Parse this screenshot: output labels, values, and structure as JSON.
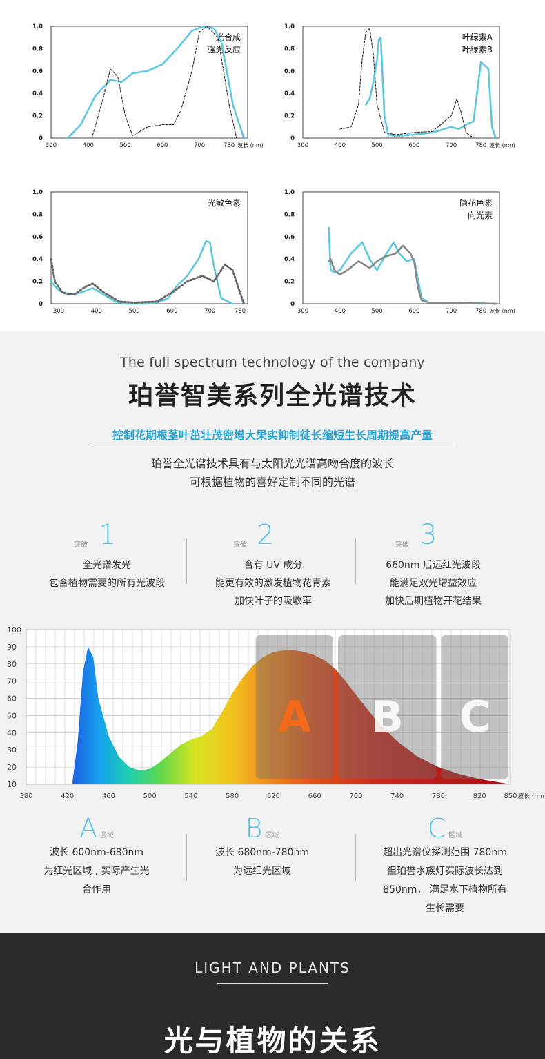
{
  "chart_data": [
    {
      "type": "line",
      "panel": "top-left",
      "legend": [
        "光合成",
        "强光反应"
      ],
      "x_ticks": [
        "300",
        "400",
        "500",
        "600",
        "700",
        "780"
      ],
      "x_unit": "波长 (nm)",
      "y_ticks": [
        "0",
        "0.2",
        "0.4",
        "0.6",
        "0.8",
        "1.0"
      ],
      "xlim": [
        300,
        830
      ],
      "ylim": [
        0,
        1.0
      ],
      "series": [
        {
          "style": "cyan-solid",
          "x": [
            345,
            380,
            420,
            460,
            490,
            520,
            560,
            600,
            640,
            680,
            710,
            740,
            760,
            790,
            820
          ],
          "y": [
            0,
            0.12,
            0.38,
            0.52,
            0.5,
            0.58,
            0.6,
            0.66,
            0.8,
            0.96,
            1.0,
            0.98,
            0.85,
            0.3,
            0
          ]
        },
        {
          "style": "black-dashed",
          "x": [
            410,
            440,
            460,
            480,
            500,
            520,
            560,
            600,
            630,
            650,
            680,
            700,
            720,
            750,
            780,
            800
          ],
          "y": [
            0,
            0.35,
            0.62,
            0.55,
            0.2,
            0.02,
            0.1,
            0.12,
            0.12,
            0.25,
            0.6,
            0.95,
            1.0,
            0.9,
            0.3,
            0
          ]
        }
      ]
    },
    {
      "type": "line",
      "panel": "top-right",
      "legend": [
        "叶绿素A",
        "叶绿素B"
      ],
      "x_ticks": [
        "300",
        "400",
        "500",
        "600",
        "700",
        "780"
      ],
      "x_unit": "波长 (nm)",
      "y_ticks": [
        "0",
        "0.2",
        "0.4",
        "0.6",
        "0.8",
        "1.0"
      ],
      "xlim": [
        300,
        830
      ],
      "ylim": [
        0,
        1.0
      ],
      "series": [
        {
          "style": "cyan-solid",
          "x": [
            470,
            480,
            490,
            500,
            505,
            510,
            520,
            530,
            550,
            600,
            650,
            700,
            720,
            740,
            760,
            780,
            800,
            810,
            820
          ],
          "y": [
            0.3,
            0.35,
            0.5,
            0.7,
            0.88,
            0.9,
            0.2,
            0.03,
            0.02,
            0.03,
            0.05,
            0.1,
            0.08,
            0.12,
            0.15,
            0.68,
            0.62,
            0.1,
            0
          ]
        },
        {
          "style": "black-dashed",
          "x": [
            400,
            430,
            450,
            460,
            470,
            480,
            490,
            500,
            520,
            550,
            600,
            650,
            700,
            715,
            725,
            740,
            760
          ],
          "y": [
            0.08,
            0.1,
            0.3,
            0.7,
            0.95,
            0.98,
            0.75,
            0.3,
            0.05,
            0.03,
            0.05,
            0.06,
            0.2,
            0.35,
            0.25,
            0.05,
            0
          ]
        }
      ]
    },
    {
      "type": "line",
      "panel": "bottom-left",
      "legend": [
        "光敏色素"
      ],
      "x_ticks": [
        "300",
        "400",
        "500",
        "600",
        "700",
        "780"
      ],
      "y_ticks": [
        "0",
        "0.2",
        "0.4",
        "0.6",
        "0.8",
        "1.0"
      ],
      "xlim": [
        280,
        800
      ],
      "ylim": [
        0,
        1.0
      ],
      "series": [
        {
          "style": "cyan-solid",
          "x": [
            280,
            300,
            330,
            360,
            390,
            420,
            450,
            480,
            520,
            560,
            590,
            610,
            640,
            670,
            690,
            700,
            710,
            730,
            760
          ],
          "y": [
            0.2,
            0.12,
            0.08,
            0.1,
            0.14,
            0.08,
            0.02,
            0.0,
            0.0,
            0.01,
            0.05,
            0.15,
            0.25,
            0.4,
            0.56,
            0.55,
            0.35,
            0.05,
            0
          ]
        },
        {
          "style": "gray-dotted",
          "x": [
            280,
            290,
            310,
            340,
            370,
            390,
            420,
            460,
            500,
            560,
            600,
            640,
            680,
            710,
            740,
            760,
            790
          ],
          "y": [
            0.4,
            0.2,
            0.1,
            0.08,
            0.15,
            0.18,
            0.1,
            0.02,
            0.01,
            0.02,
            0.1,
            0.2,
            0.25,
            0.2,
            0.35,
            0.3,
            0
          ]
        }
      ]
    },
    {
      "type": "line",
      "panel": "bottom-right",
      "legend": [
        "隐花色素",
        "向光素"
      ],
      "x_ticks": [
        "300",
        "400",
        "500",
        "600",
        "700",
        "780"
      ],
      "x_unit": "波长 (nm)",
      "y_ticks": [
        "0",
        "0.2",
        "0.4",
        "0.6",
        "0.8",
        "1.0"
      ],
      "xlim": [
        300,
        830
      ],
      "ylim": [
        0,
        1.0
      ],
      "series": [
        {
          "style": "cyan-solid",
          "x": [
            370,
            375,
            385,
            400,
            430,
            460,
            480,
            500,
            520,
            545,
            560,
            580,
            600,
            620,
            640,
            700,
            820
          ],
          "y": [
            0.68,
            0.3,
            0.28,
            0.3,
            0.45,
            0.55,
            0.4,
            0.3,
            0.42,
            0.55,
            0.45,
            0.38,
            0.4,
            0.05,
            0.01,
            0.01,
            0.0
          ]
        },
        {
          "style": "gray-solid",
          "x": [
            370,
            375,
            385,
            400,
            420,
            450,
            480,
            500,
            520,
            550,
            570,
            590,
            600,
            610,
            620,
            640,
            700,
            820
          ],
          "y": [
            0.38,
            0.4,
            0.3,
            0.26,
            0.3,
            0.38,
            0.32,
            0.38,
            0.42,
            0.45,
            0.52,
            0.45,
            0.38,
            0.15,
            0.03,
            0.01,
            0.01,
            0.0
          ]
        }
      ]
    },
    {
      "type": "area",
      "panel": "main-spectrum",
      "x_ticks": [
        "380",
        "420",
        "460",
        "500",
        "540",
        "580",
        "620",
        "660",
        "700",
        "740",
        "780",
        "820",
        "850"
      ],
      "x_unit": "波长 (nm)",
      "y_ticks": [
        "10",
        "20",
        "30",
        "40",
        "50",
        "60",
        "70",
        "80",
        "90",
        "100"
      ],
      "xlim": [
        380,
        850
      ],
      "ylim": [
        10,
        100
      ],
      "zones": [
        {
          "label": "A",
          "from": 600,
          "to": 680
        },
        {
          "label": "B",
          "from": 680,
          "to": 780
        },
        {
          "label": "C",
          "from": 780,
          "to": 850
        }
      ],
      "x": [
        425,
        430,
        435,
        440,
        445,
        450,
        460,
        470,
        480,
        490,
        500,
        510,
        520,
        530,
        540,
        550,
        560,
        570,
        580,
        590,
        600,
        610,
        620,
        630,
        640,
        650,
        660,
        670,
        680,
        690,
        700,
        720,
        740,
        760,
        780,
        800,
        820,
        840,
        850
      ],
      "y": [
        12,
        35,
        75,
        90,
        84,
        60,
        38,
        26,
        20,
        18,
        19,
        23,
        28,
        33,
        36,
        38,
        42,
        52,
        63,
        72,
        79,
        84,
        87,
        88,
        88,
        87,
        85,
        82,
        77,
        70,
        62,
        47,
        35,
        26,
        20,
        16,
        13,
        11,
        10
      ]
    }
  ],
  "headline": {
    "en_title": "The full spectrum technology of the company",
    "cn_title": "珀誉智美系列全光谱技术",
    "cn_sub": "控制花期根茎叶茁壮茂密增大果实抑制徒长缩短生长周期提高产量",
    "desc_1": "珀誉全光谱技术具有与太阳光光谱高吻合度的波长",
    "desc_2": "可根据植物的喜好定制不同的光谱"
  },
  "breaks": [
    {
      "tag": "突破",
      "num": "1",
      "lines": [
        "全光谱发光",
        "包含植物需要的所有光波段"
      ]
    },
    {
      "tag": "突破",
      "num": "2",
      "lines": [
        "含有 UV 成分",
        "能更有效的激发植物花青素",
        "加快叶子的吸收率"
      ]
    },
    {
      "tag": "突破",
      "num": "3",
      "lines": [
        "660nm 后远红光波段",
        "能满足双光增益效应",
        "加快后期植物开花结果"
      ]
    }
  ],
  "zones": [
    {
      "letter": "A",
      "tag": "区域",
      "lines": [
        "波长 600nm-680nm",
        "为红光区域 , 实际产生光",
        "合作用"
      ]
    },
    {
      "letter": "B",
      "tag": "区域",
      "lines": [
        "波长 680nm-780nm",
        "为远红光区域"
      ]
    },
    {
      "letter": "C",
      "tag": "区域",
      "lines": [
        "超出光谱仪探测范围 780nm",
        "但珀誉水族灯实际波长达到",
        "850nm， 满足水下植物所有",
        "生长需要"
      ]
    }
  ],
  "dark": {
    "en": "LIGHT AND PLANTS",
    "cn": "光与植物的关系"
  }
}
